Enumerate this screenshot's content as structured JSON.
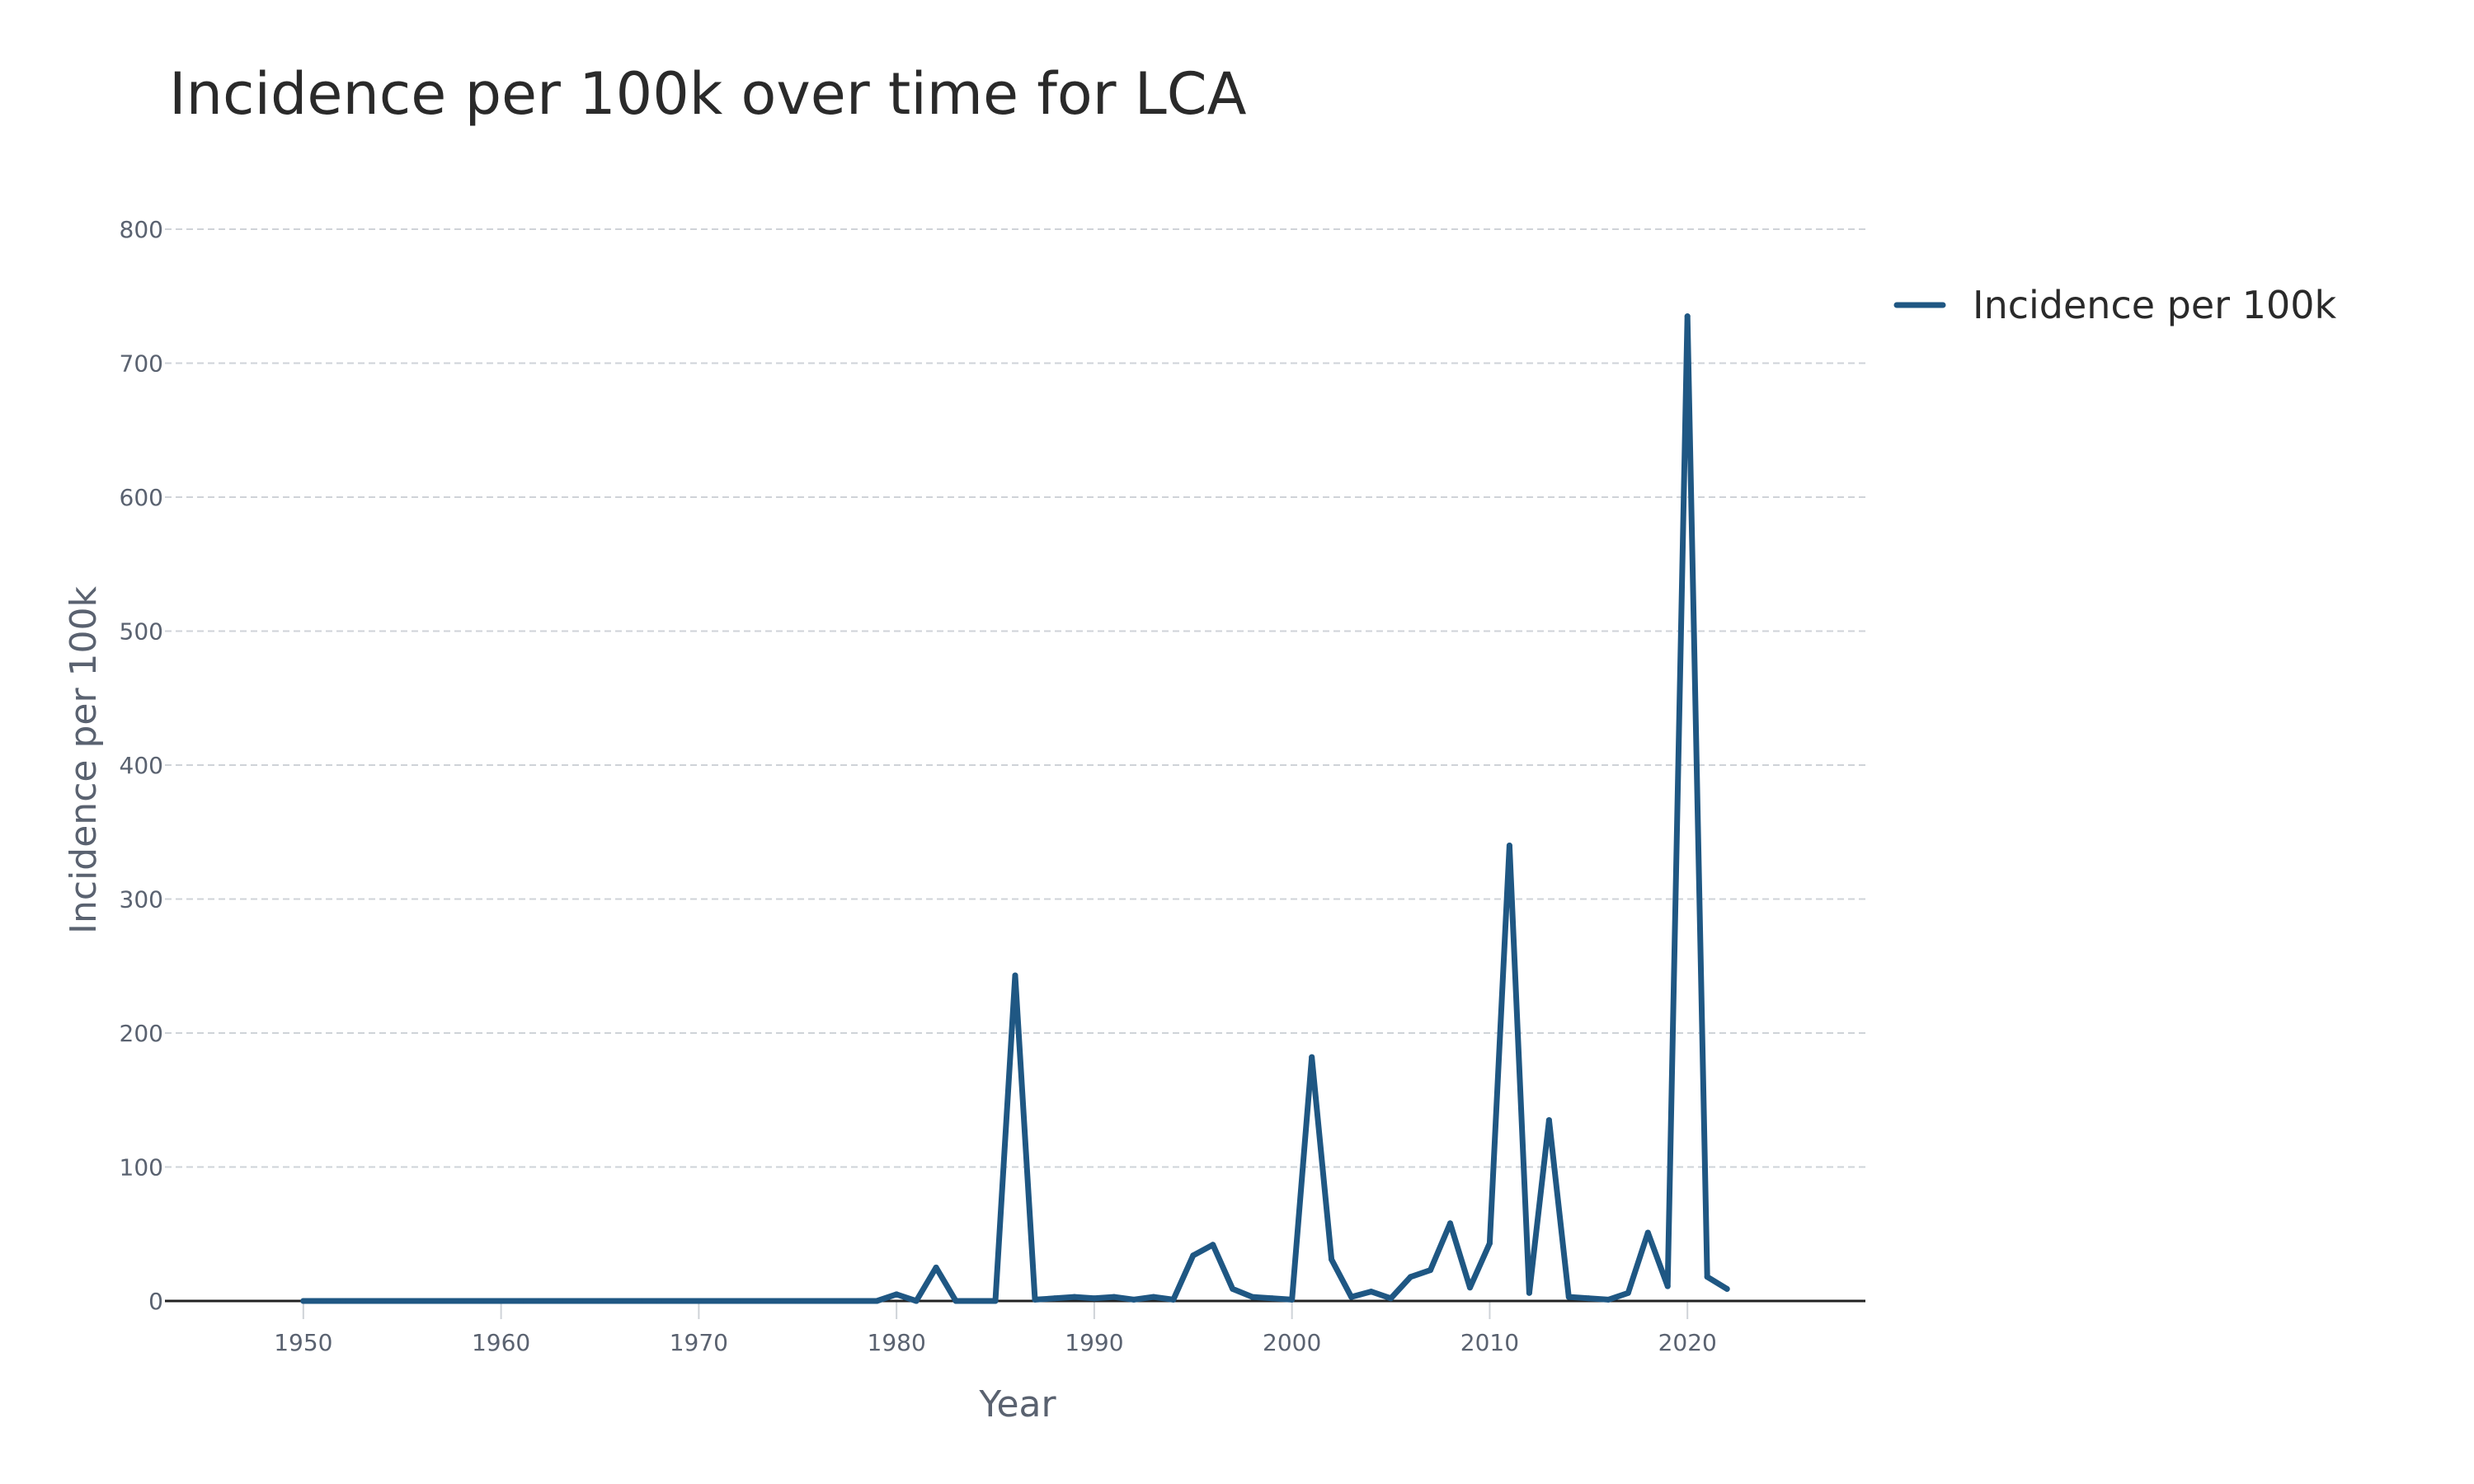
{
  "chart_data": {
    "type": "line",
    "title": "Incidence per 100k over time for LCA",
    "xlabel": "Year",
    "ylabel": "Incidence per 100k",
    "xlim": [
      1943,
      2029
    ],
    "ylim": [
      0,
      800
    ],
    "x_ticks": [
      1950,
      1960,
      1970,
      1980,
      1990,
      2000,
      2010,
      2020
    ],
    "y_ticks": [
      0,
      100,
      200,
      300,
      400,
      500,
      600,
      700,
      800
    ],
    "grid": "horizontal",
    "legend_position": "top-right",
    "series": [
      {
        "name": "Incidence per 100k",
        "color": "#1f5783",
        "x": [
          1950,
          1951,
          1952,
          1953,
          1954,
          1955,
          1956,
          1957,
          1958,
          1959,
          1960,
          1961,
          1962,
          1963,
          1964,
          1965,
          1966,
          1967,
          1968,
          1969,
          1970,
          1971,
          1972,
          1973,
          1974,
          1975,
          1976,
          1977,
          1978,
          1979,
          1980,
          1981,
          1982,
          1983,
          1984,
          1985,
          1986,
          1987,
          1988,
          1989,
          1990,
          1991,
          1992,
          1993,
          1994,
          1995,
          1996,
          1997,
          1998,
          1999,
          2000,
          2001,
          2002,
          2003,
          2004,
          2005,
          2006,
          2007,
          2008,
          2009,
          2010,
          2011,
          2012,
          2013,
          2014,
          2015,
          2016,
          2017,
          2018,
          2019,
          2020,
          2021,
          2022
        ],
        "y": [
          0,
          0,
          0,
          0,
          0,
          0,
          0,
          0,
          0,
          0,
          0,
          0,
          0,
          0,
          0,
          0,
          0,
          0,
          0,
          0,
          0,
          0,
          0,
          0,
          0,
          0,
          0,
          0,
          0,
          0,
          5,
          0,
          25,
          0,
          0,
          0,
          243,
          1,
          2,
          3,
          2,
          3,
          1,
          3,
          1,
          34,
          42,
          9,
          3,
          2,
          1,
          182,
          31,
          3,
          7,
          2,
          18,
          23,
          58,
          10,
          43,
          340,
          6,
          135,
          3,
          2,
          1,
          6,
          51,
          11,
          735,
          18,
          9
        ]
      }
    ]
  }
}
